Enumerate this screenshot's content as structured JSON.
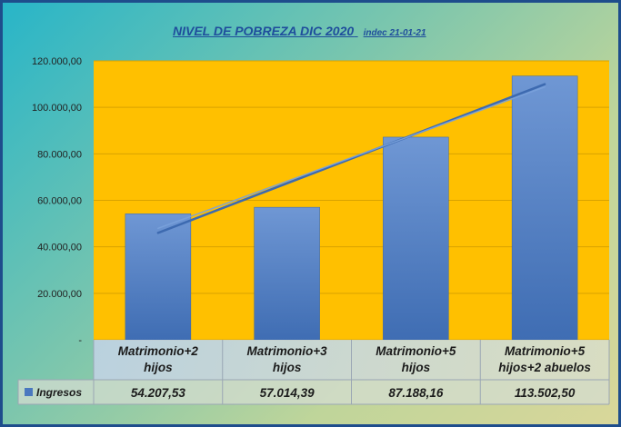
{
  "chart_data": {
    "type": "bar",
    "title": "NIVEL DE POBREZA DIC 2020",
    "subtitle": "indec 21-01-21",
    "categories": [
      [
        "Matrimonio+2",
        "hijos"
      ],
      [
        "Matrimonio+3",
        "hijos"
      ],
      [
        "Matrimonio+5",
        "hijos"
      ],
      [
        "Matrimonio+5",
        "hijos+2 abuelos"
      ]
    ],
    "series": [
      {
        "name": "Ingresos",
        "values": [
          54207.53,
          57014.39,
          87188.16,
          113502.5
        ]
      }
    ],
    "value_labels": [
      "54.207,53",
      "57.014,39",
      "87.188,16",
      "113.502,50"
    ],
    "ylim": [
      0,
      120000
    ],
    "yticks": [
      0,
      20000,
      40000,
      60000,
      80000,
      100000,
      120000
    ],
    "ytick_labels": [
      "-",
      "20.000,00",
      "40.000,00",
      "60.000,00",
      "80.000,00",
      "100.000,00",
      "120.000,00"
    ],
    "trendline": "linear",
    "grid": true,
    "legend": "data-table",
    "colors": {
      "bar": "#4a78bf",
      "plot_bg": "#ffc000",
      "trend": "#3d6ab0",
      "title": "#1f4e9c"
    }
  }
}
